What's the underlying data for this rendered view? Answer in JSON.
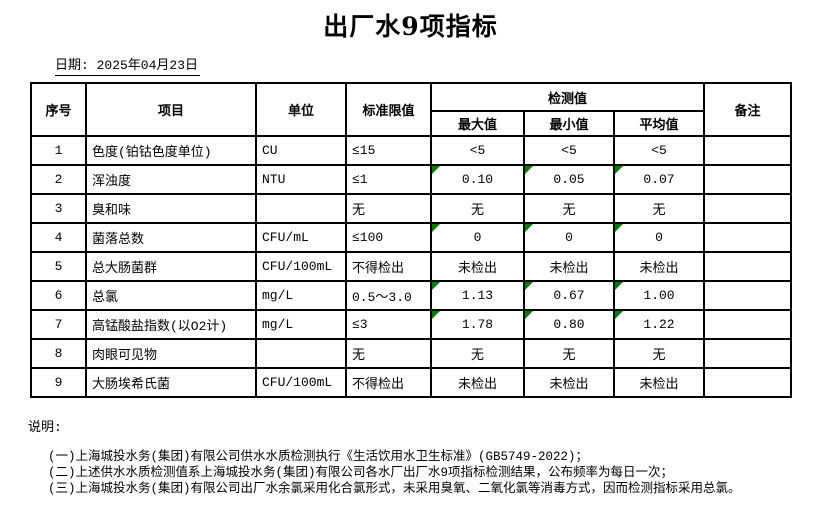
{
  "page": {
    "title": "出厂水9项指标",
    "date_line": "日期: 2025年04月23日"
  },
  "table": {
    "headers": {
      "index": "序号",
      "item": "项目",
      "unit": "单位",
      "limit": "标准限值",
      "detect_group": "检测值",
      "max": "最大值",
      "min": "最小值",
      "avg": "平均值",
      "remark": "备注"
    },
    "rows": [
      {
        "no": "1",
        "item": "色度(铂钴色度单位)",
        "unit": "CU",
        "limit": "≤15",
        "max": "<5",
        "min": "<5",
        "avg": "<5",
        "remark": "",
        "flag": false
      },
      {
        "no": "2",
        "item": "浑浊度",
        "unit": "NTU",
        "limit": "≤1",
        "max": "0.10",
        "min": "0.05",
        "avg": "0.07",
        "remark": "",
        "flag": true
      },
      {
        "no": "3",
        "item": "臭和味",
        "unit": "",
        "limit": "无",
        "max": "无",
        "min": "无",
        "avg": "无",
        "remark": "",
        "flag": false
      },
      {
        "no": "4",
        "item": "菌落总数",
        "unit": "CFU/mL",
        "limit": "≤100",
        "max": "0",
        "min": "0",
        "avg": "0",
        "remark": "",
        "flag": true
      },
      {
        "no": "5",
        "item": "总大肠菌群",
        "unit": "CFU/100mL",
        "limit": "不得检出",
        "max": "未检出",
        "min": "未检出",
        "avg": "未检出",
        "remark": "",
        "flag": false
      },
      {
        "no": "6",
        "item": "总氯",
        "unit": "mg/L",
        "limit": "0.5～3.0",
        "max": "1.13",
        "min": "0.67",
        "avg": "1.00",
        "remark": "",
        "flag": true
      },
      {
        "no": "7",
        "item": "高锰酸盐指数(以O2计)",
        "unit": "mg/L",
        "limit": "≤3",
        "max": "1.78",
        "min": "0.80",
        "avg": "1.22",
        "remark": "",
        "flag": true
      },
      {
        "no": "8",
        "item": "肉眼可见物",
        "unit": "",
        "limit": "无",
        "max": "无",
        "min": "无",
        "avg": "无",
        "remark": "",
        "flag": false
      },
      {
        "no": "9",
        "item": "大肠埃希氏菌",
        "unit": "CFU/100mL",
        "limit": "不得检出",
        "max": "未检出",
        "min": "未检出",
        "avg": "未检出",
        "remark": "",
        "flag": false
      }
    ]
  },
  "notes": {
    "label": "说明:",
    "items": [
      "(一)上海城投水务(集团)有限公司供水水质检测执行《生活饮用水卫生标准》(GB5749-2022)；",
      "(二)上述供水水质检测值系上海城投水务(集团)有限公司各水厂出厂水9项指标检测结果，公布频率为每日一次；",
      "(三)上海城投水务(集团)有限公司出厂水余氯采用化合氯形式，未采用臭氧、二氧化氯等消毒方式，因而检测指标采用总氯。"
    ]
  },
  "colors": {
    "flag_triangle": "#007c00",
    "border": "#000000"
  }
}
